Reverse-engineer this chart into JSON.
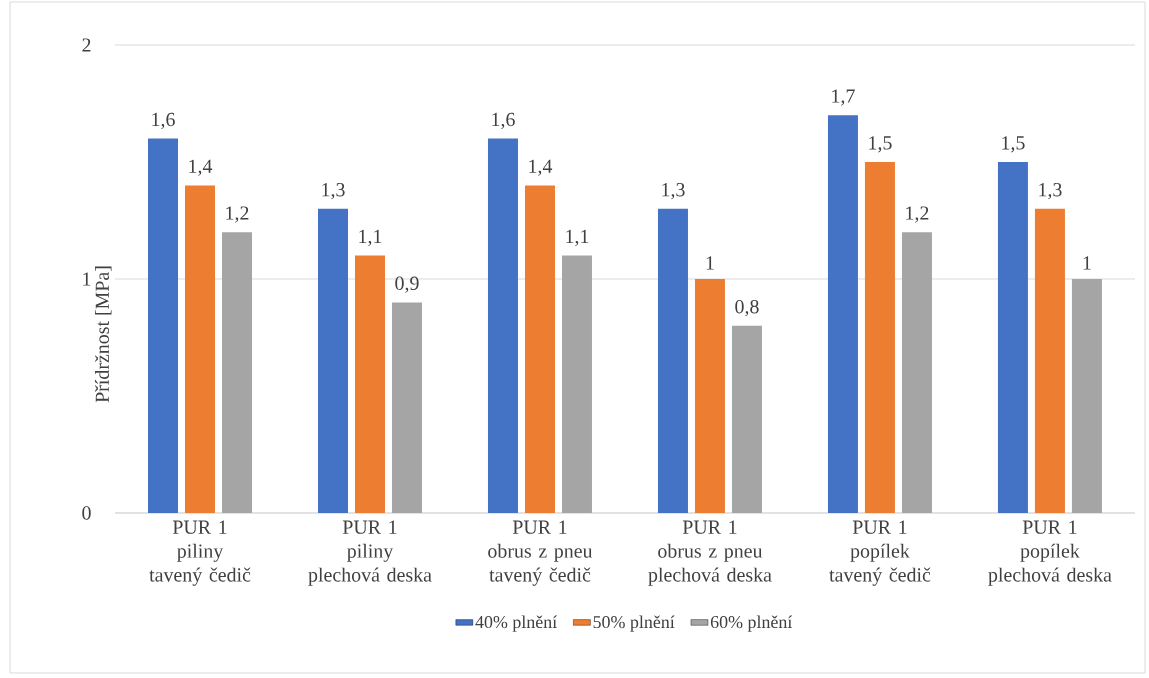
{
  "chart_data": {
    "type": "bar",
    "ylabel": "Přídržnost [MPa]",
    "categories": [
      "PUR 1\npiliny\ntavený čedič",
      "PUR 1\npiliny\nplechová deska",
      "PUR 1\nobrus z pneu\ntavený čedič",
      "PUR 1\nobrus z pneu\nplechová deska",
      "PUR 1\npopílek\ntavený čedič",
      "PUR 1\npopílek\nplechová deska"
    ],
    "series": [
      {
        "name": "40% plnění",
        "color": "#4472c4",
        "values": [
          1.6,
          1.3,
          1.6,
          1.3,
          1.7,
          1.5
        ],
        "value_labels": [
          "1,6",
          "1,3",
          "1,6",
          "1,3",
          "1,7",
          "1,5"
        ]
      },
      {
        "name": "50% plnění",
        "color": "#ed7d31",
        "values": [
          1.4,
          1.1,
          1.4,
          1.0,
          1.5,
          1.3
        ],
        "value_labels": [
          "1,4",
          "1,1",
          "1,4",
          "1",
          "1,5",
          "1,3"
        ]
      },
      {
        "name": "60% plnění",
        "color": "#a5a5a5",
        "values": [
          1.2,
          0.9,
          1.1,
          0.8,
          1.2,
          1.0
        ],
        "value_labels": [
          "1,2",
          "0,9",
          "1,1",
          "0,8",
          "1,2",
          "1"
        ]
      }
    ],
    "ylim": [
      0,
      2
    ],
    "yticks": [
      0,
      1,
      2
    ],
    "grid": "y",
    "legend": "bottom"
  }
}
